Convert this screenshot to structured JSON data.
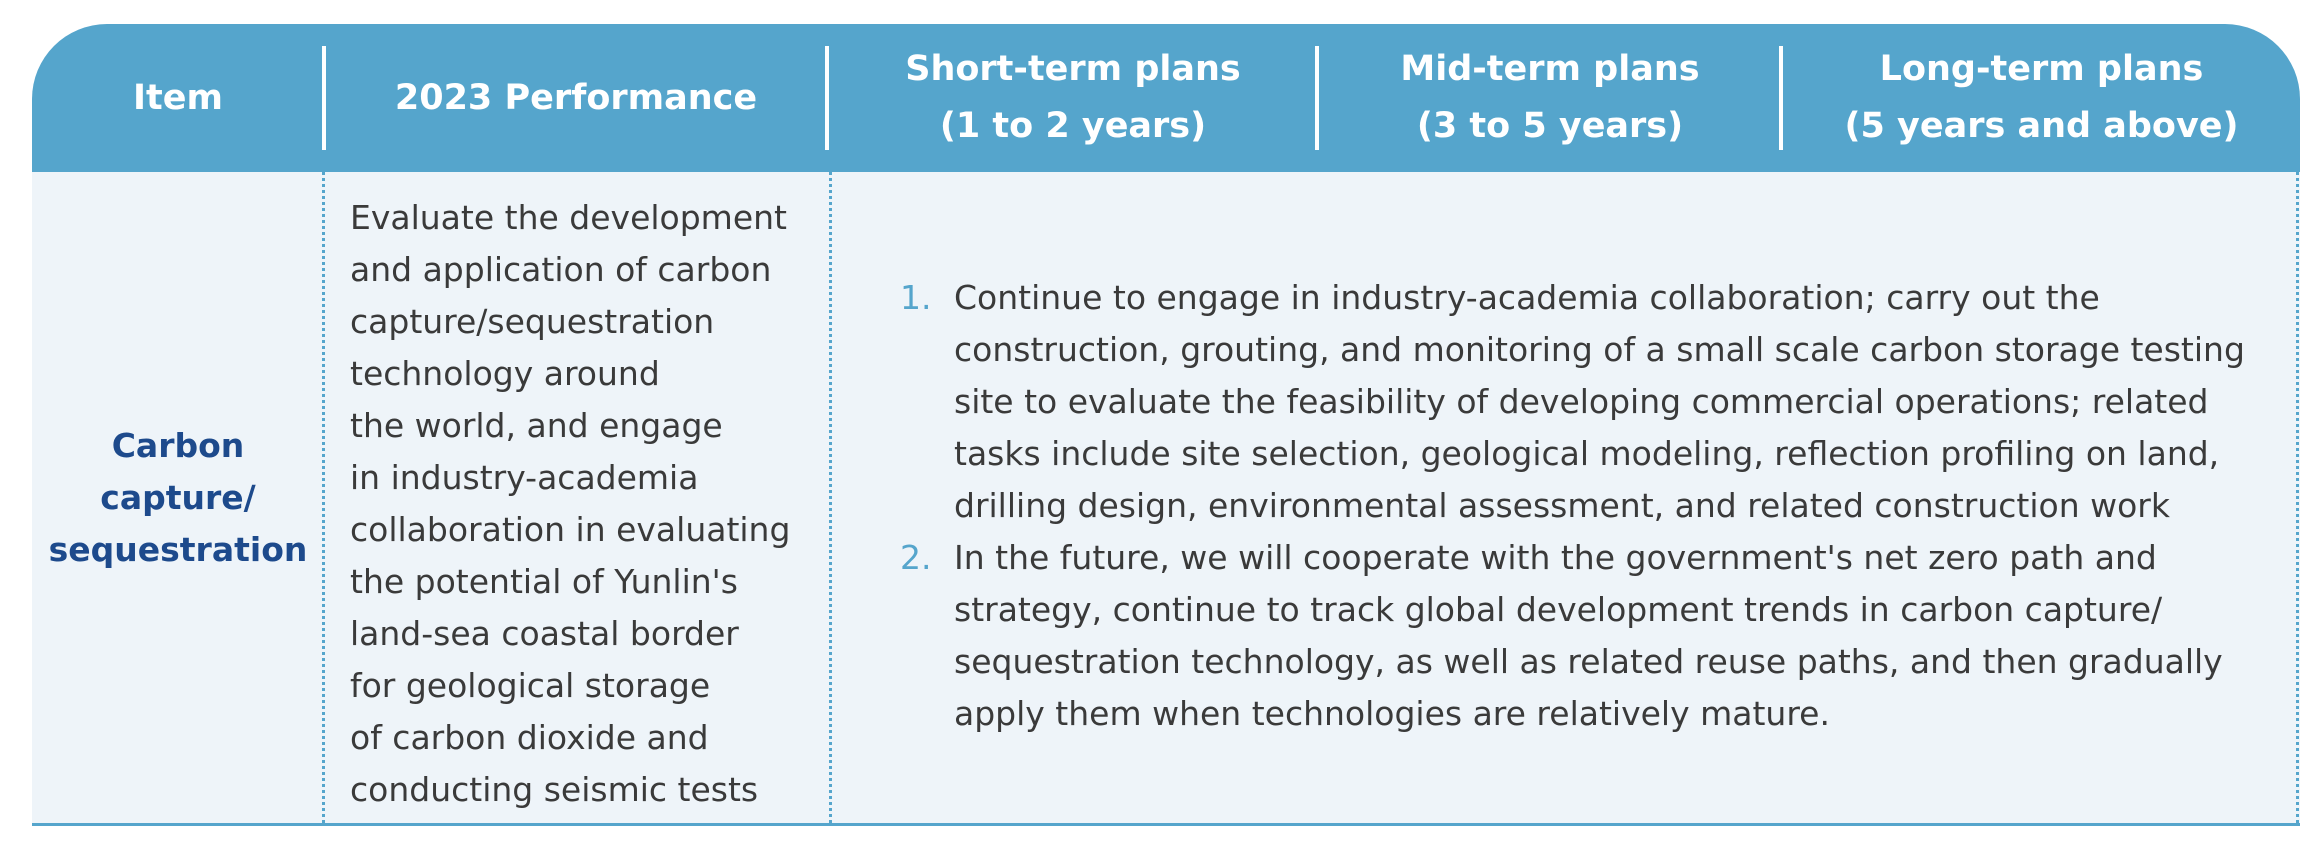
{
  "header": {
    "columns": [
      {
        "lines": [
          "Item"
        ]
      },
      {
        "lines": [
          "2023 Performance"
        ]
      },
      {
        "lines": [
          "Short-term plans",
          "(1 to 2 years)"
        ]
      },
      {
        "lines": [
          "Mid-term plans",
          "(3 to 5 years)"
        ]
      },
      {
        "lines": [
          "Long-term plans",
          "(5 years and above)"
        ]
      }
    ]
  },
  "row": {
    "item_lines": [
      "Carbon",
      "capture/",
      "sequestration"
    ],
    "performance_lines": [
      "Evaluate the development",
      "and application of carbon",
      "capture/sequestration",
      "technology around",
      "the world, and engage",
      "in industry-academia",
      "collaboration in evaluating",
      "the potential of Yunlin's",
      "land-sea coastal border",
      "for geological storage",
      "of carbon dioxide and",
      "conducting seismic tests"
    ],
    "plans": [
      {
        "number": "1.",
        "lines": [
          "Continue to engage in industry-academia collaboration; carry out the",
          "construction, grouting, and monitoring of a small scale carbon storage testing",
          "site to evaluate the feasibility of developing commercial operations; related",
          "tasks include site selection, geological modeling, reflection profiling on land,",
          "drilling design, environmental assessment, and related construction work"
        ]
      },
      {
        "number": "2.",
        "lines": [
          "In the future, we will cooperate with the government's net zero path and",
          "strategy, continue to track global development trends in carbon capture/",
          "sequestration technology, as well as related reuse paths, and then gradually",
          "apply them when technologies are relatively mature."
        ]
      }
    ]
  },
  "colors": {
    "header_bg": "#55a5cc",
    "body_bg": "#eef4f9",
    "item_text": "#1d4a8c",
    "body_text": "#3a3a3a",
    "number_text": "#55a5cc"
  }
}
